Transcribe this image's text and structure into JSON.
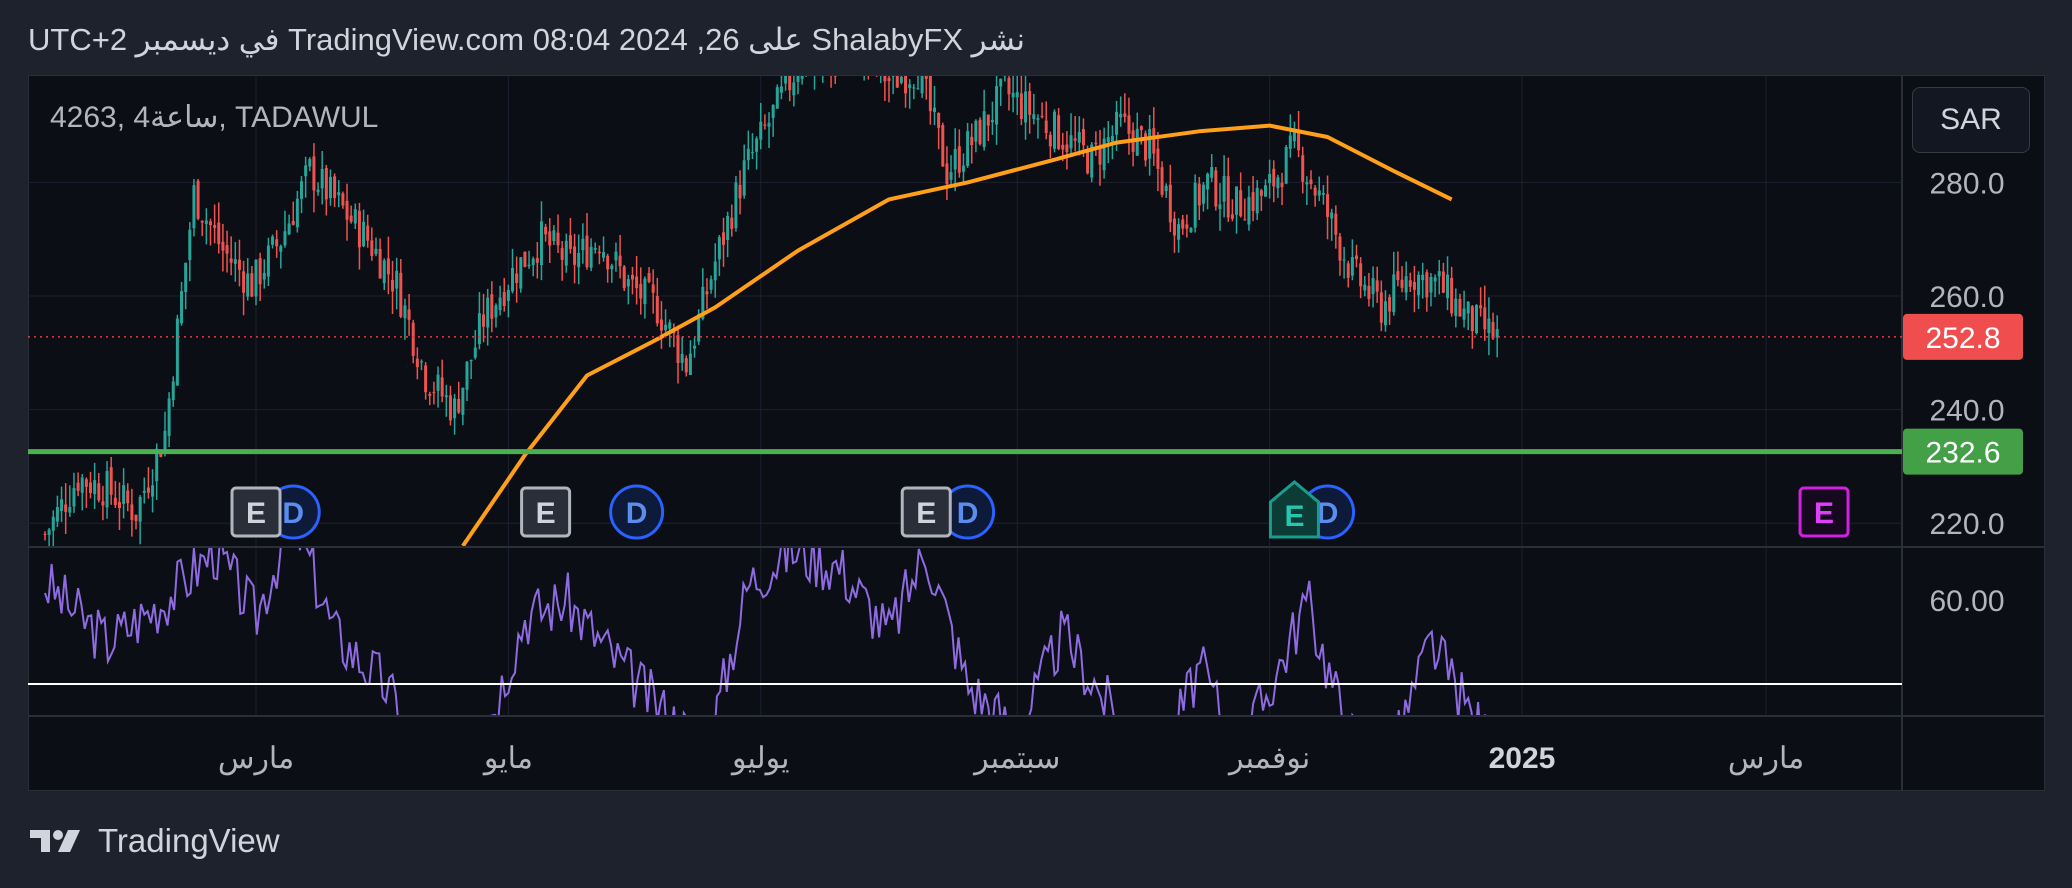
{
  "header": {
    "text": "نشر ShalabyFX على TradingView.com 08:04 2024 ,26 في ديسمبر UTC+2"
  },
  "symbol": {
    "label": "4263, 4ساعة, TADAWUL"
  },
  "currency": {
    "label": "SAR"
  },
  "footer": {
    "brand": "TradingView",
    "logo_icon": "tradingview-logo-icon"
  },
  "colors": {
    "background": "#0c0e15",
    "frame": "#1e222d",
    "candle_up": "#26a69a",
    "candle_down": "#ef5350",
    "moving_average": "#ff9f1a",
    "support_line": "#4caf50",
    "current_price": "#f23645",
    "oscillator": "#8e6be0",
    "oscillator_reference": "#ffffff"
  },
  "chart_data": {
    "type": "candlestick",
    "price_axis": {
      "ticks": [
        220,
        240,
        260,
        280
      ],
      "tick_labels": [
        "220.0",
        "240.0",
        "260.0",
        "280.0"
      ]
    },
    "time_axis": {
      "ticks": [
        {
          "label": "مارس",
          "month": "2024-03",
          "bold": false
        },
        {
          "label": "مايو",
          "month": "2024-05",
          "bold": false
        },
        {
          "label": "يوليو",
          "month": "2024-07",
          "bold": false
        },
        {
          "label": "سبتمبر",
          "month": "2024-09",
          "bold": false
        },
        {
          "label": "نوفمبر",
          "month": "2024-11",
          "bold": false
        },
        {
          "label": "2025",
          "month": "2025-01",
          "bold": true
        },
        {
          "label": "مارس",
          "month": "2025-03",
          "bold": false
        }
      ]
    },
    "price_series": [
      [
        "2024-01-10",
        218
      ],
      [
        "2024-01-18",
        228
      ],
      [
        "2024-01-25",
        226
      ],
      [
        "2024-02-01",
        222
      ],
      [
        "2024-02-08",
        236
      ],
      [
        "2024-02-15",
        278
      ],
      [
        "2024-02-22",
        268
      ],
      [
        "2024-02-29",
        262
      ],
      [
        "2024-03-07",
        270
      ],
      [
        "2024-03-14",
        282
      ],
      [
        "2024-03-21",
        276
      ],
      [
        "2024-03-28",
        270
      ],
      [
        "2024-04-04",
        262
      ],
      [
        "2024-04-11",
        246
      ],
      [
        "2024-04-18",
        240
      ],
      [
        "2024-04-25",
        256
      ],
      [
        "2024-05-02",
        264
      ],
      [
        "2024-05-09",
        270
      ],
      [
        "2024-05-16",
        266
      ],
      [
        "2024-05-23",
        270
      ],
      [
        "2024-05-30",
        262
      ],
      [
        "2024-06-06",
        258
      ],
      [
        "2024-06-13",
        248
      ],
      [
        "2024-06-20",
        266
      ],
      [
        "2024-06-27",
        282
      ],
      [
        "2024-07-04",
        292
      ],
      [
        "2024-07-11",
        302
      ],
      [
        "2024-07-18",
        300
      ],
      [
        "2024-07-25",
        304
      ],
      [
        "2024-08-01",
        298
      ],
      [
        "2024-08-08",
        300
      ],
      [
        "2024-08-15",
        282
      ],
      [
        "2024-08-22",
        288
      ],
      [
        "2024-08-29",
        296
      ],
      [
        "2024-09-05",
        292
      ],
      [
        "2024-09-12",
        288
      ],
      [
        "2024-09-19",
        284
      ],
      [
        "2024-09-26",
        290
      ],
      [
        "2024-10-03",
        286
      ],
      [
        "2024-10-10",
        272
      ],
      [
        "2024-10-17",
        280
      ],
      [
        "2024-10-24",
        276
      ],
      [
        "2024-10-31",
        278
      ],
      [
        "2024-11-07",
        286
      ],
      [
        "2024-11-14",
        276
      ],
      [
        "2024-11-21",
        264
      ],
      [
        "2024-11-28",
        258
      ],
      [
        "2024-12-05",
        264
      ],
      [
        "2024-12-12",
        262
      ],
      [
        "2024-12-19",
        256
      ],
      [
        "2024-12-26",
        252.8
      ]
    ],
    "moving_average": [
      [
        "2024-04-20",
        216
      ],
      [
        "2024-05-05",
        232
      ],
      [
        "2024-05-20",
        246
      ],
      [
        "2024-06-05",
        252
      ],
      [
        "2024-06-20",
        258
      ],
      [
        "2024-07-10",
        268
      ],
      [
        "2024-08-01",
        277
      ],
      [
        "2024-08-20",
        280
      ],
      [
        "2024-09-10",
        284
      ],
      [
        "2024-09-25",
        287
      ],
      [
        "2024-10-15",
        289
      ],
      [
        "2024-11-01",
        290
      ],
      [
        "2024-11-15",
        288
      ],
      [
        "2024-12-01",
        282
      ],
      [
        "2024-12-15",
        277
      ]
    ],
    "current_price": {
      "value": 252.8,
      "label": "252.8"
    },
    "support_level": {
      "value": 232.6,
      "label": "232.6"
    },
    "events": [
      {
        "type": "E",
        "date": "2024-03-01",
        "style": "past"
      },
      {
        "type": "D",
        "date": "2024-03-10",
        "style": "dividend"
      },
      {
        "type": "E",
        "date": "2024-05-10",
        "style": "past"
      },
      {
        "type": "D",
        "date": "2024-06-01",
        "style": "dividend"
      },
      {
        "type": "E",
        "date": "2024-08-10",
        "style": "past"
      },
      {
        "type": "D",
        "date": "2024-08-20",
        "style": "dividend"
      },
      {
        "type": "E",
        "date": "2024-11-07",
        "style": "upcoming"
      },
      {
        "type": "D",
        "date": "2024-11-15",
        "style": "dividend"
      },
      {
        "type": "E",
        "date": "2025-03-15",
        "style": "future"
      }
    ],
    "oscillator": {
      "tick_label": "60.00",
      "tick_value": 60,
      "reference_level": 50,
      "series": [
        [
          "2024-01-10",
          62
        ],
        [
          "2024-01-25",
          55
        ],
        [
          "2024-02-08",
          60
        ],
        [
          "2024-02-20",
          66
        ],
        [
          "2024-03-01",
          58
        ],
        [
          "2024-03-10",
          70
        ],
        [
          "2024-03-20",
          56
        ],
        [
          "2024-04-01",
          50
        ],
        [
          "2024-04-12",
          40
        ],
        [
          "2024-04-25",
          44
        ],
        [
          "2024-05-05",
          58
        ],
        [
          "2024-05-15",
          60
        ],
        [
          "2024-05-25",
          54
        ],
        [
          "2024-06-05",
          48
        ],
        [
          "2024-06-18",
          42
        ],
        [
          "2024-06-28",
          62
        ],
        [
          "2024-07-08",
          66
        ],
        [
          "2024-07-20",
          64
        ],
        [
          "2024-08-01",
          56
        ],
        [
          "2024-08-10",
          66
        ],
        [
          "2024-08-20",
          50
        ],
        [
          "2024-09-01",
          44
        ],
        [
          "2024-09-12",
          56
        ],
        [
          "2024-09-25",
          46
        ],
        [
          "2024-10-05",
          40
        ],
        [
          "2024-10-15",
          52
        ],
        [
          "2024-10-25",
          42
        ],
        [
          "2024-11-05",
          54
        ],
        [
          "2024-11-10",
          60
        ],
        [
          "2024-11-20",
          44
        ],
        [
          "2024-12-01",
          42
        ],
        [
          "2024-12-10",
          55
        ],
        [
          "2024-12-20",
          46
        ],
        [
          "2024-12-26",
          42
        ]
      ]
    }
  }
}
